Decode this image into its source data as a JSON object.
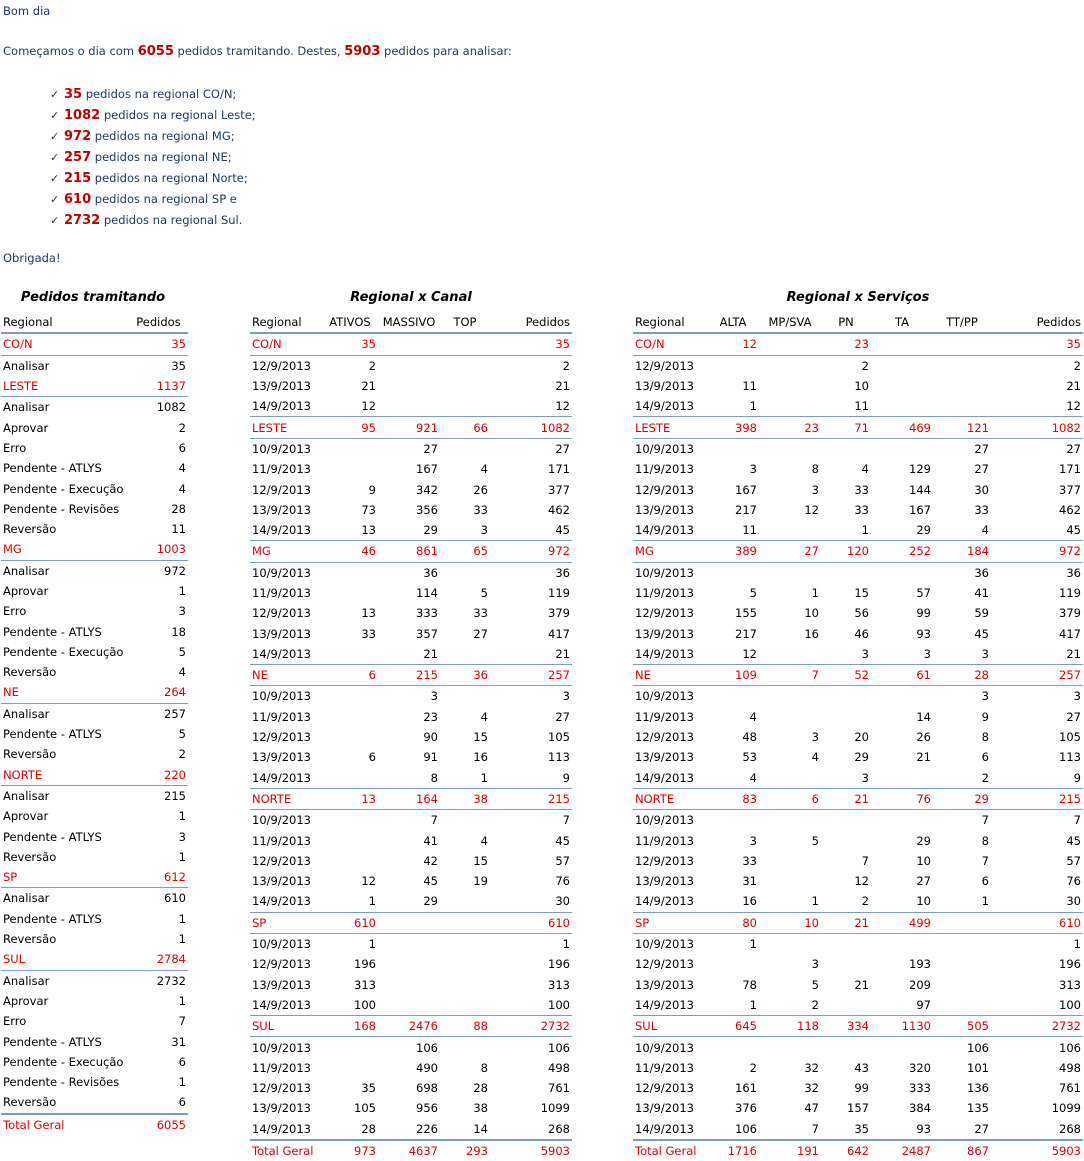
{
  "message": {
    "greeting": "Bom dia",
    "intro_pre": "Começamos o dia com ",
    "total_tramitando": "6055",
    "intro_mid": " pedidos tramitando. Destes, ",
    "total_analisar": "5903",
    "intro_post": " pedidos para analisar:",
    "bullets": [
      {
        "num": "35",
        "text": " pedidos na regional CO/N;"
      },
      {
        "num": "1082",
        "text": " pedidos na regional Leste;"
      },
      {
        "num": "972",
        "text": " pedidos na regional MG;"
      },
      {
        "num": "257",
        "text": " pedidos na regional NE;"
      },
      {
        "num": "215",
        "text": " pedidos na regional Norte;"
      },
      {
        "num": "610",
        "text": " pedidos na regional SP e"
      },
      {
        "num": "2732",
        "text": " pedidos na regional Sul."
      }
    ],
    "closing": "Obrigada!"
  },
  "tramitando": {
    "title": "Pedidos tramitando",
    "headers": [
      "Regional",
      "Pedidos"
    ],
    "rows": [
      {
        "k": "g",
        "c": [
          "CO/N",
          "35"
        ]
      },
      {
        "k": "r",
        "c": [
          "Analisar",
          "35"
        ]
      },
      {
        "k": "g",
        "c": [
          "LESTE",
          "1137"
        ]
      },
      {
        "k": "r",
        "c": [
          "Analisar",
          "1082"
        ]
      },
      {
        "k": "r",
        "c": [
          "Aprovar",
          "2"
        ]
      },
      {
        "k": "r",
        "c": [
          "Erro",
          "6"
        ]
      },
      {
        "k": "r",
        "c": [
          "Pendente - ATLYS",
          "4"
        ]
      },
      {
        "k": "r",
        "c": [
          "Pendente - Execução",
          "4"
        ]
      },
      {
        "k": "r",
        "c": [
          "Pendente - Revisões",
          "28"
        ]
      },
      {
        "k": "r",
        "c": [
          "Reversão",
          "11"
        ]
      },
      {
        "k": "g",
        "c": [
          "MG",
          "1003"
        ]
      },
      {
        "k": "r",
        "c": [
          "Analisar",
          "972"
        ]
      },
      {
        "k": "r",
        "c": [
          "Aprovar",
          "1"
        ]
      },
      {
        "k": "r",
        "c": [
          "Erro",
          "3"
        ]
      },
      {
        "k": "r",
        "c": [
          "Pendente - ATLYS",
          "18"
        ]
      },
      {
        "k": "r",
        "c": [
          "Pendente - Execução",
          "5"
        ]
      },
      {
        "k": "r",
        "c": [
          "Reversão",
          "4"
        ]
      },
      {
        "k": "g",
        "c": [
          "NE",
          "264"
        ]
      },
      {
        "k": "r",
        "c": [
          "Analisar",
          "257"
        ]
      },
      {
        "k": "r",
        "c": [
          "Pendente - ATLYS",
          "5"
        ]
      },
      {
        "k": "r",
        "c": [
          "Reversão",
          "2"
        ]
      },
      {
        "k": "g",
        "c": [
          "NORTE",
          "220"
        ]
      },
      {
        "k": "r",
        "c": [
          "Analisar",
          "215"
        ]
      },
      {
        "k": "r",
        "c": [
          "Aprovar",
          "1"
        ]
      },
      {
        "k": "r",
        "c": [
          "Pendente - ATLYS",
          "3"
        ]
      },
      {
        "k": "r",
        "c": [
          "Reversão",
          "1"
        ]
      },
      {
        "k": "g",
        "c": [
          "SP",
          "612"
        ]
      },
      {
        "k": "r",
        "c": [
          "Analisar",
          "610"
        ]
      },
      {
        "k": "r",
        "c": [
          "Pendente - ATLYS",
          "1"
        ]
      },
      {
        "k": "r",
        "c": [
          "Reversão",
          "1"
        ]
      },
      {
        "k": "g",
        "c": [
          "SUL",
          "2784"
        ]
      },
      {
        "k": "r",
        "c": [
          "Analisar",
          "2732"
        ]
      },
      {
        "k": "r",
        "c": [
          "Aprovar",
          "1"
        ]
      },
      {
        "k": "r",
        "c": [
          "Erro",
          "7"
        ]
      },
      {
        "k": "r",
        "c": [
          "Pendente - ATLYS",
          "31"
        ]
      },
      {
        "k": "r",
        "c": [
          "Pendente - Execução",
          "6"
        ]
      },
      {
        "k": "r",
        "c": [
          "Pendente - Revisões",
          "1"
        ]
      },
      {
        "k": "r",
        "c": [
          "Reversão",
          "6"
        ]
      },
      {
        "k": "t",
        "c": [
          "Total Geral",
          "6055"
        ]
      }
    ]
  },
  "canal": {
    "title": "Regional x Canal",
    "headers": [
      "Regional",
      "ATIVOS",
      "MASSIVO",
      "TOP",
      "Pedidos"
    ],
    "rows": [
      {
        "k": "g",
        "c": [
          "CO/N",
          "35",
          "",
          "",
          "35"
        ]
      },
      {
        "k": "r",
        "c": [
          "12/9/2013",
          "2",
          "",
          "",
          "2"
        ]
      },
      {
        "k": "r",
        "c": [
          "13/9/2013",
          "21",
          "",
          "",
          "21"
        ]
      },
      {
        "k": "r",
        "c": [
          "14/9/2013",
          "12",
          "",
          "",
          "12"
        ]
      },
      {
        "k": "G",
        "c": [
          "LESTE",
          "95",
          "921",
          "66",
          "1082"
        ]
      },
      {
        "k": "r",
        "c": [
          "10/9/2013",
          "",
          "27",
          "",
          "27"
        ]
      },
      {
        "k": "r",
        "c": [
          "11/9/2013",
          "",
          "167",
          "4",
          "171"
        ]
      },
      {
        "k": "r",
        "c": [
          "12/9/2013",
          "9",
          "342",
          "26",
          "377"
        ]
      },
      {
        "k": "r",
        "c": [
          "13/9/2013",
          "73",
          "356",
          "33",
          "462"
        ]
      },
      {
        "k": "r",
        "c": [
          "14/9/2013",
          "13",
          "29",
          "3",
          "45"
        ]
      },
      {
        "k": "G",
        "c": [
          "MG",
          "46",
          "861",
          "65",
          "972"
        ]
      },
      {
        "k": "r",
        "c": [
          "10/9/2013",
          "",
          "36",
          "",
          "36"
        ]
      },
      {
        "k": "r",
        "c": [
          "11/9/2013",
          "",
          "114",
          "5",
          "119"
        ]
      },
      {
        "k": "r",
        "c": [
          "12/9/2013",
          "13",
          "333",
          "33",
          "379"
        ]
      },
      {
        "k": "r",
        "c": [
          "13/9/2013",
          "33",
          "357",
          "27",
          "417"
        ]
      },
      {
        "k": "r",
        "c": [
          "14/9/2013",
          "",
          "21",
          "",
          "21"
        ]
      },
      {
        "k": "G",
        "c": [
          "NE",
          "6",
          "215",
          "36",
          "257"
        ]
      },
      {
        "k": "r",
        "c": [
          "10/9/2013",
          "",
          "3",
          "",
          "3"
        ]
      },
      {
        "k": "r",
        "c": [
          "11/9/2013",
          "",
          "23",
          "4",
          "27"
        ]
      },
      {
        "k": "r",
        "c": [
          "12/9/2013",
          "",
          "90",
          "15",
          "105"
        ]
      },
      {
        "k": "r",
        "c": [
          "13/9/2013",
          "6",
          "91",
          "16",
          "113"
        ]
      },
      {
        "k": "r",
        "c": [
          "14/9/2013",
          "",
          "8",
          "1",
          "9"
        ]
      },
      {
        "k": "G",
        "c": [
          "NORTE",
          "13",
          "164",
          "38",
          "215"
        ]
      },
      {
        "k": "r",
        "c": [
          "10/9/2013",
          "",
          "7",
          "",
          "7"
        ]
      },
      {
        "k": "r",
        "c": [
          "11/9/2013",
          "",
          "41",
          "4",
          "45"
        ]
      },
      {
        "k": "r",
        "c": [
          "12/9/2013",
          "",
          "42",
          "15",
          "57"
        ]
      },
      {
        "k": "r",
        "c": [
          "13/9/2013",
          "12",
          "45",
          "19",
          "76"
        ]
      },
      {
        "k": "r",
        "c": [
          "14/9/2013",
          "1",
          "29",
          "",
          "30"
        ]
      },
      {
        "k": "G",
        "c": [
          "SP",
          "610",
          "",
          "",
          "610"
        ]
      },
      {
        "k": "r",
        "c": [
          "10/9/2013",
          "1",
          "",
          "",
          "1"
        ]
      },
      {
        "k": "r",
        "c": [
          "12/9/2013",
          "196",
          "",
          "",
          "196"
        ]
      },
      {
        "k": "r",
        "c": [
          "13/9/2013",
          "313",
          "",
          "",
          "313"
        ]
      },
      {
        "k": "r",
        "c": [
          "14/9/2013",
          "100",
          "",
          "",
          "100"
        ]
      },
      {
        "k": "G",
        "c": [
          "SUL",
          "168",
          "2476",
          "88",
          "2732"
        ]
      },
      {
        "k": "r",
        "c": [
          "10/9/2013",
          "",
          "106",
          "",
          "106"
        ]
      },
      {
        "k": "r",
        "c": [
          "11/9/2013",
          "",
          "490",
          "8",
          "498"
        ]
      },
      {
        "k": "r",
        "c": [
          "12/9/2013",
          "35",
          "698",
          "28",
          "761"
        ]
      },
      {
        "k": "r",
        "c": [
          "13/9/2013",
          "105",
          "956",
          "38",
          "1099"
        ]
      },
      {
        "k": "r",
        "c": [
          "14/9/2013",
          "28",
          "226",
          "14",
          "268"
        ]
      },
      {
        "k": "t",
        "c": [
          "Total Geral",
          "973",
          "4637",
          "293",
          "5903"
        ]
      }
    ]
  },
  "servicos": {
    "title": "Regional x Serviços",
    "headers": [
      "Regional",
      "ALTA",
      "MP/SVA",
      "PN",
      "TA",
      "TT/PP",
      "Pedidos"
    ],
    "rows": [
      {
        "k": "g",
        "c": [
          "CO/N",
          "12",
          "",
          "23",
          "",
          "",
          "35"
        ]
      },
      {
        "k": "r",
        "c": [
          "12/9/2013",
          "",
          "",
          "2",
          "",
          "",
          "2"
        ]
      },
      {
        "k": "r",
        "c": [
          "13/9/2013",
          "11",
          "",
          "10",
          "",
          "",
          "21"
        ]
      },
      {
        "k": "r",
        "c": [
          "14/9/2013",
          "1",
          "",
          "11",
          "",
          "",
          "12"
        ]
      },
      {
        "k": "G",
        "c": [
          "LESTE",
          "398",
          "23",
          "71",
          "469",
          "121",
          "1082"
        ]
      },
      {
        "k": "r",
        "c": [
          "10/9/2013",
          "",
          "",
          "",
          "",
          "27",
          "27"
        ]
      },
      {
        "k": "r",
        "c": [
          "11/9/2013",
          "3",
          "8",
          "4",
          "129",
          "27",
          "171"
        ]
      },
      {
        "k": "r",
        "c": [
          "12/9/2013",
          "167",
          "3",
          "33",
          "144",
          "30",
          "377"
        ]
      },
      {
        "k": "r",
        "c": [
          "13/9/2013",
          "217",
          "12",
          "33",
          "167",
          "33",
          "462"
        ]
      },
      {
        "k": "r",
        "c": [
          "14/9/2013",
          "11",
          "",
          "1",
          "29",
          "4",
          "45"
        ]
      },
      {
        "k": "G",
        "c": [
          "MG",
          "389",
          "27",
          "120",
          "252",
          "184",
          "972"
        ]
      },
      {
        "k": "r",
        "c": [
          "10/9/2013",
          "",
          "",
          "",
          "",
          "36",
          "36"
        ]
      },
      {
        "k": "r",
        "c": [
          "11/9/2013",
          "5",
          "1",
          "15",
          "57",
          "41",
          "119"
        ]
      },
      {
        "k": "r",
        "c": [
          "12/9/2013",
          "155",
          "10",
          "56",
          "99",
          "59",
          "379"
        ]
      },
      {
        "k": "r",
        "c": [
          "13/9/2013",
          "217",
          "16",
          "46",
          "93",
          "45",
          "417"
        ]
      },
      {
        "k": "r",
        "c": [
          "14/9/2013",
          "12",
          "",
          "3",
          "3",
          "3",
          "21"
        ]
      },
      {
        "k": "G",
        "c": [
          "NE",
          "109",
          "7",
          "52",
          "61",
          "28",
          "257"
        ]
      },
      {
        "k": "r",
        "c": [
          "10/9/2013",
          "",
          "",
          "",
          "",
          "3",
          "3"
        ]
      },
      {
        "k": "r",
        "c": [
          "11/9/2013",
          "4",
          "",
          "",
          "14",
          "9",
          "27"
        ]
      },
      {
        "k": "r",
        "c": [
          "12/9/2013",
          "48",
          "3",
          "20",
          "26",
          "8",
          "105"
        ]
      },
      {
        "k": "r",
        "c": [
          "13/9/2013",
          "53",
          "4",
          "29",
          "21",
          "6",
          "113"
        ]
      },
      {
        "k": "r",
        "c": [
          "14/9/2013",
          "4",
          "",
          "3",
          "",
          "2",
          "9"
        ]
      },
      {
        "k": "G",
        "c": [
          "NORTE",
          "83",
          "6",
          "21",
          "76",
          "29",
          "215"
        ]
      },
      {
        "k": "r",
        "c": [
          "10/9/2013",
          "",
          "",
          "",
          "",
          "7",
          "7"
        ]
      },
      {
        "k": "r",
        "c": [
          "11/9/2013",
          "3",
          "5",
          "",
          "29",
          "8",
          "45"
        ]
      },
      {
        "k": "r",
        "c": [
          "12/9/2013",
          "33",
          "",
          "7",
          "10",
          "7",
          "57"
        ]
      },
      {
        "k": "r",
        "c": [
          "13/9/2013",
          "31",
          "",
          "12",
          "27",
          "6",
          "76"
        ]
      },
      {
        "k": "r",
        "c": [
          "14/9/2013",
          "16",
          "1",
          "2",
          "10",
          "1",
          "30"
        ]
      },
      {
        "k": "G",
        "c": [
          "SP",
          "80",
          "10",
          "21",
          "499",
          "",
          "610"
        ]
      },
      {
        "k": "r",
        "c": [
          "10/9/2013",
          "1",
          "",
          "",
          "",
          "",
          "1"
        ]
      },
      {
        "k": "r",
        "c": [
          "12/9/2013",
          "",
          "3",
          "",
          "193",
          "",
          "196"
        ]
      },
      {
        "k": "r",
        "c": [
          "13/9/2013",
          "78",
          "5",
          "21",
          "209",
          "",
          "313"
        ]
      },
      {
        "k": "r",
        "c": [
          "14/9/2013",
          "1",
          "2",
          "",
          "97",
          "",
          "100"
        ]
      },
      {
        "k": "G",
        "c": [
          "SUL",
          "645",
          "118",
          "334",
          "1130",
          "505",
          "2732"
        ]
      },
      {
        "k": "r",
        "c": [
          "10/9/2013",
          "",
          "",
          "",
          "",
          "106",
          "106"
        ]
      },
      {
        "k": "r",
        "c": [
          "11/9/2013",
          "2",
          "32",
          "43",
          "320",
          "101",
          "498"
        ]
      },
      {
        "k": "r",
        "c": [
          "12/9/2013",
          "161",
          "32",
          "99",
          "333",
          "136",
          "761"
        ]
      },
      {
        "k": "r",
        "c": [
          "13/9/2013",
          "376",
          "47",
          "157",
          "384",
          "135",
          "1099"
        ]
      },
      {
        "k": "r",
        "c": [
          "14/9/2013",
          "106",
          "7",
          "35",
          "93",
          "27",
          "268"
        ]
      },
      {
        "k": "t",
        "c": [
          "Total Geral",
          "1716",
          "191",
          "642",
          "2487",
          "867",
          "5903"
        ]
      }
    ]
  }
}
